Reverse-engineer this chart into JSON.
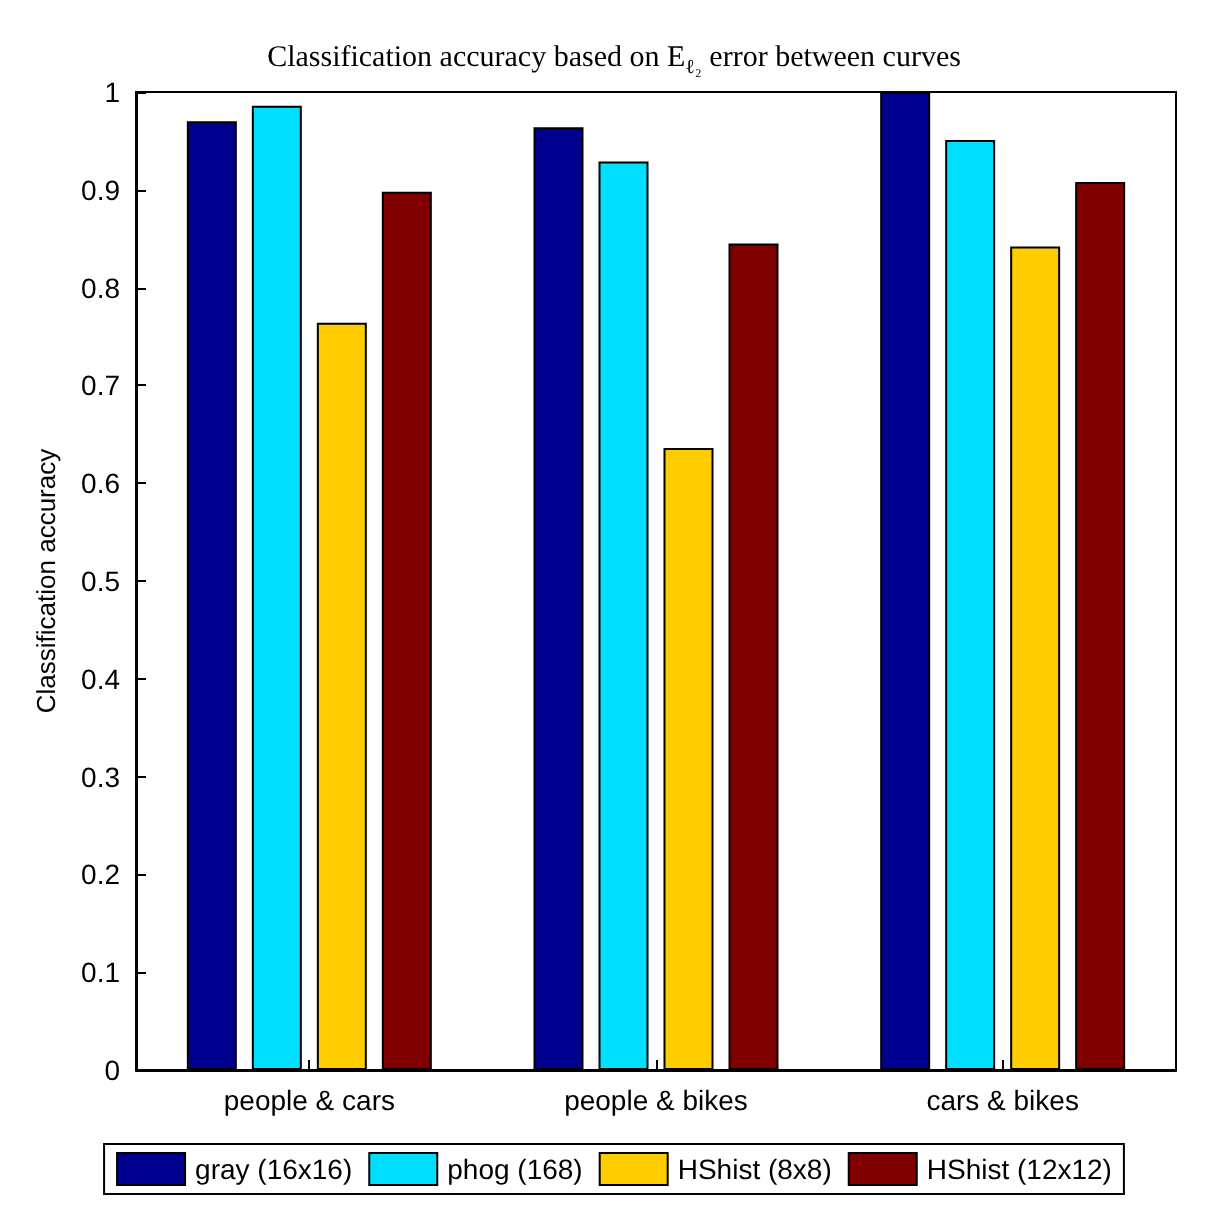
{
  "chart_data": {
    "type": "bar",
    "title": "Classification accuracy based on E$_{ℓ₂}$ error between curves",
    "ylabel": "Classification accuracy",
    "categories": [
      "people & cars",
      "people & bikes",
      "cars & bikes"
    ],
    "series": [
      {
        "name": "gray (16x16)",
        "color": "#00008f",
        "values": [
          0.97,
          0.964,
          1.0
        ]
      },
      {
        "name": "phog (168)",
        "color": "#00dfff",
        "values": [
          0.986,
          0.929,
          0.951
        ]
      },
      {
        "name": "HShist (8x8)",
        "color": "#ffcc00",
        "values": [
          0.764,
          0.636,
          0.842
        ]
      },
      {
        "name": "HShist (12x12)",
        "color": "#800000",
        "values": [
          0.898,
          0.845,
          0.908
        ]
      }
    ],
    "ylim": [
      0,
      1
    ],
    "yticks": [
      0,
      0.1,
      0.2,
      0.3,
      0.4,
      0.5,
      0.6,
      0.7,
      0.8,
      0.9,
      1
    ],
    "grid": false,
    "legend": "bottom"
  }
}
